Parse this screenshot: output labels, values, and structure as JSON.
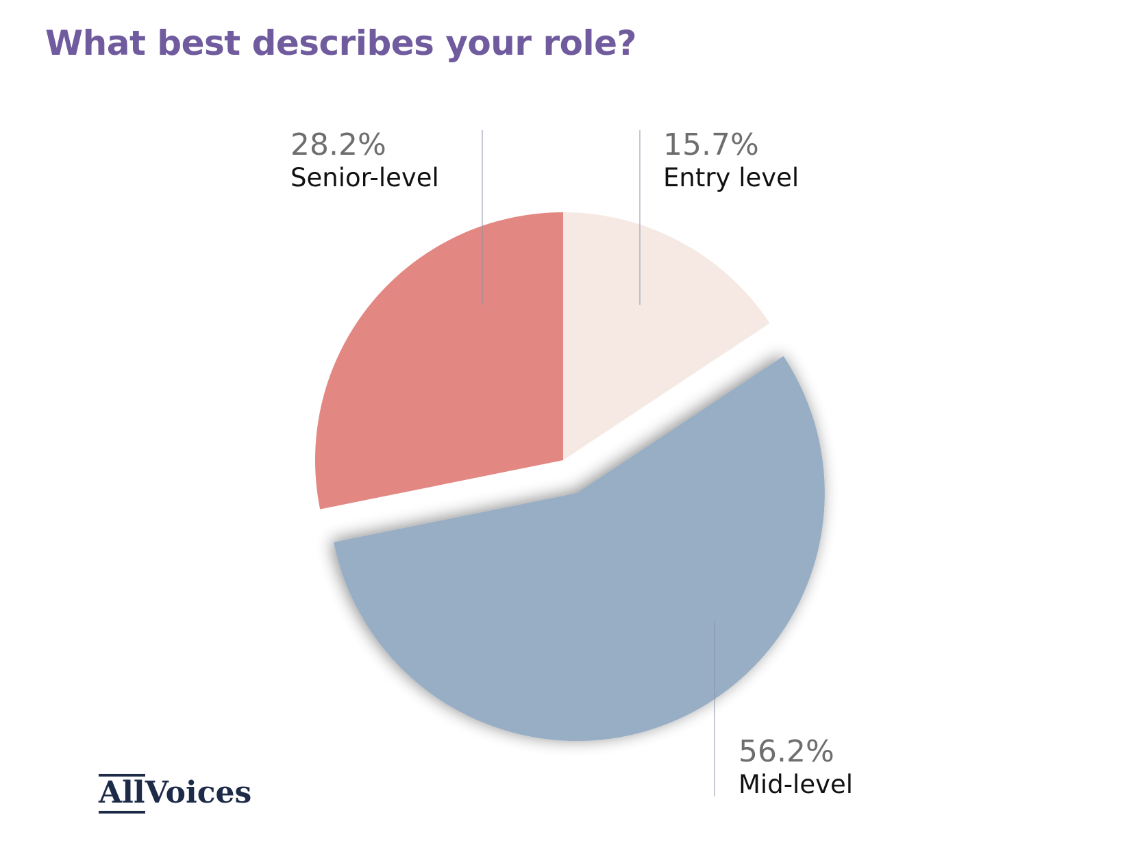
{
  "chart_data": {
    "type": "pie",
    "title": "What best describes your role?",
    "slices": [
      {
        "label": "Entry level",
        "value": 15.7,
        "value_label": "15.7%",
        "color": "#f6e9e4"
      },
      {
        "label": "Mid-level",
        "value": 56.2,
        "value_label": "56.2%",
        "color": "#98aec5",
        "exploded": true
      },
      {
        "label": "Senior-level",
        "value": 28.2,
        "value_label": "28.2%",
        "color": "#e38782"
      }
    ],
    "start_angle_deg": 0,
    "direction": "clockwise",
    "legend": "none"
  },
  "colors": {
    "title": "#6f5b9d",
    "value_text": "#6e6e6e",
    "category_text": "#111111",
    "leader_line": "#8a93a8",
    "logo": "#1d2a48"
  },
  "logo": {
    "part1": "All",
    "part2": "Voices"
  }
}
